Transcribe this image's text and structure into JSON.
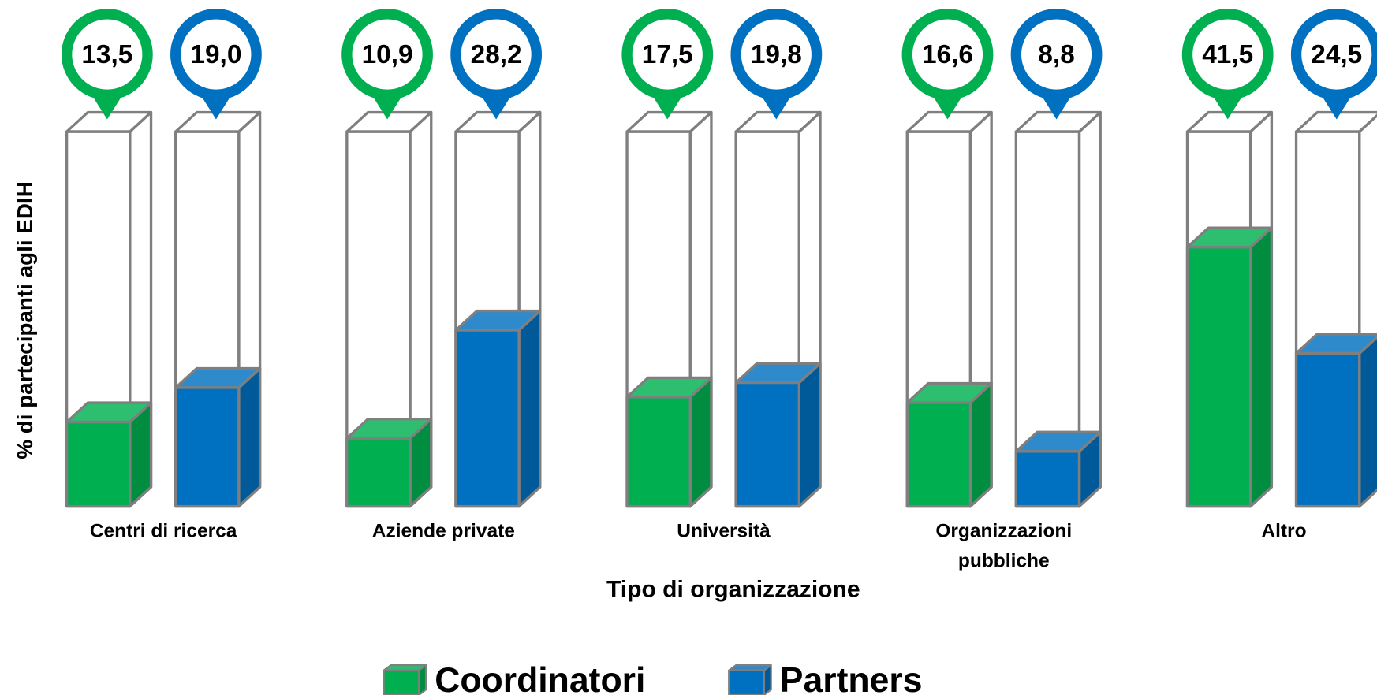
{
  "chart_data": {
    "type": "bar3d",
    "x_label": "Tipo di organizzazione",
    "y_label": "% di partecipanti agli EDIH",
    "categories": [
      "Centri di ricerca",
      "Aziende private",
      "Università",
      "Organizzazioni\npubbliche",
      "Altro"
    ],
    "ylim": [
      0,
      60
    ],
    "series": [
      {
        "name": "Coordinatori",
        "color": "#00b050",
        "values": [
          13.5,
          10.9,
          17.5,
          16.6,
          41.5
        ],
        "value_labels": [
          "13,5",
          "10,9",
          "17,5",
          "16,6",
          "41,5"
        ]
      },
      {
        "name": "Partners",
        "color": "#0070c0",
        "values": [
          19.0,
          28.2,
          19.8,
          8.8,
          24.5
        ],
        "value_labels": [
          "19,0",
          "28,2",
          "19,8",
          "8,8",
          "24,5"
        ]
      }
    ],
    "legend": "bottom"
  }
}
